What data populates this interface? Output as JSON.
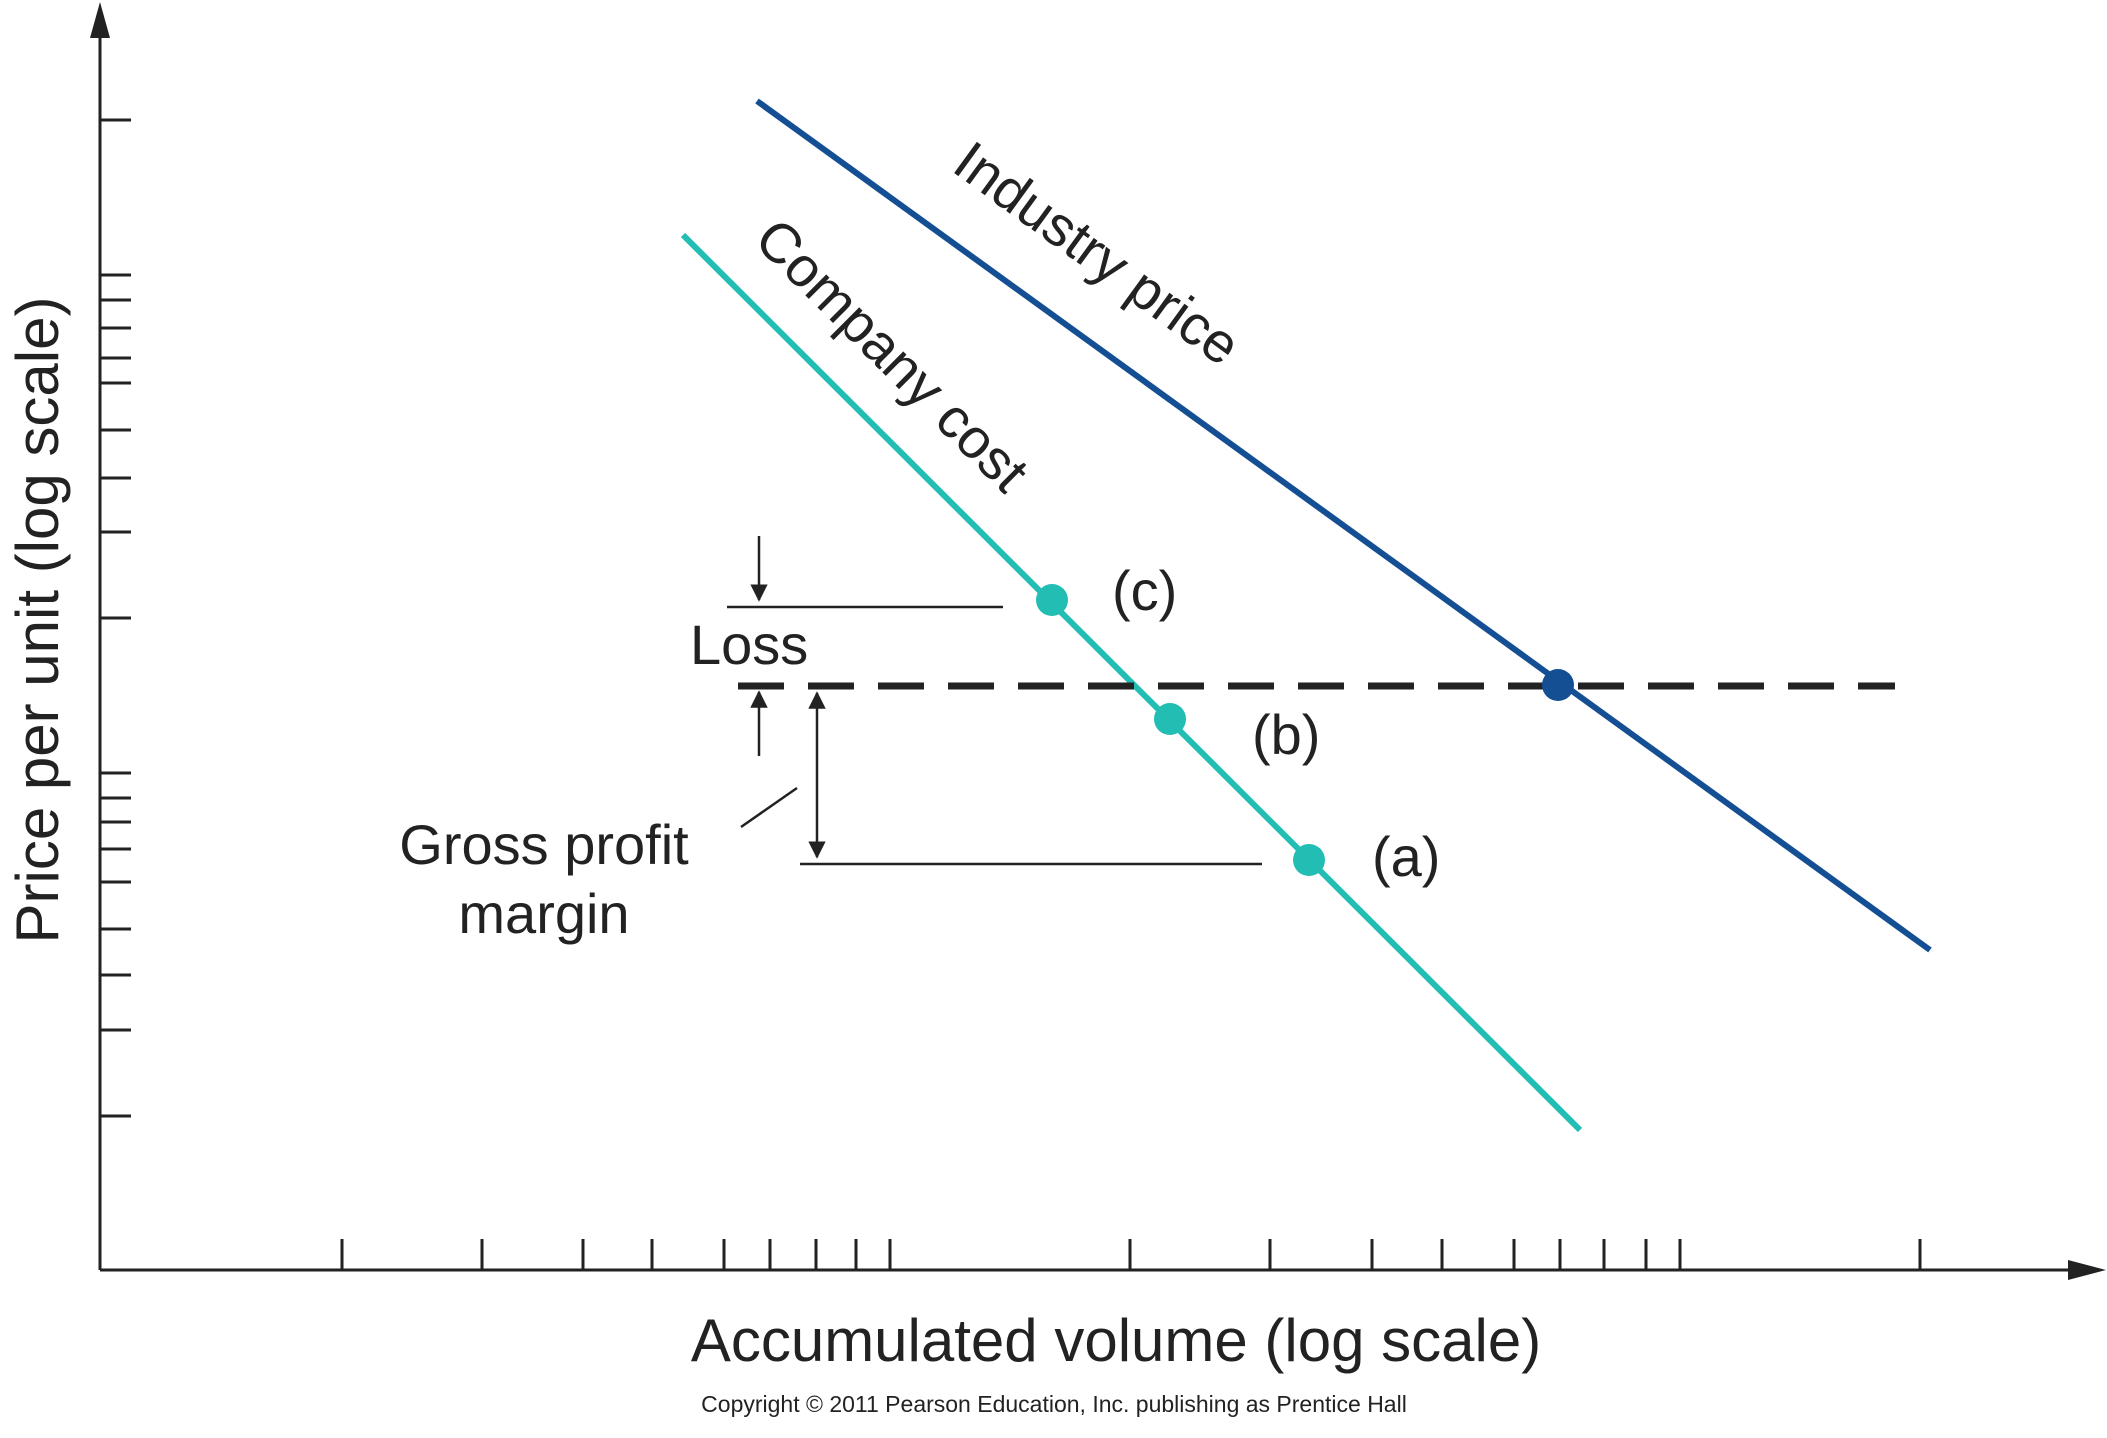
{
  "chart_data": {
    "type": "line",
    "xlabel": "Accumulated volume (log scale)",
    "ylabel": "Price per unit (log scale)",
    "xscale": "log",
    "yscale": "log",
    "x_tick_labels": [],
    "y_tick_labels": [],
    "series": [
      {
        "name": "Industry price",
        "color": "#144E93"
      },
      {
        "name": "Company cost",
        "color": "#22BDB3"
      }
    ],
    "points": [
      {
        "label": "(c)",
        "series": "Company cost"
      },
      {
        "label": "(b)",
        "series": "Company cost"
      },
      {
        "label": "(a)",
        "series": "Company cost"
      }
    ],
    "annotations": {
      "loss": "Loss",
      "gross_profit_margin": [
        "Gross profit",
        "margin"
      ]
    },
    "copyright": "Copyright © 2011 Pearson Education, Inc. publishing as Prentice Hall"
  }
}
